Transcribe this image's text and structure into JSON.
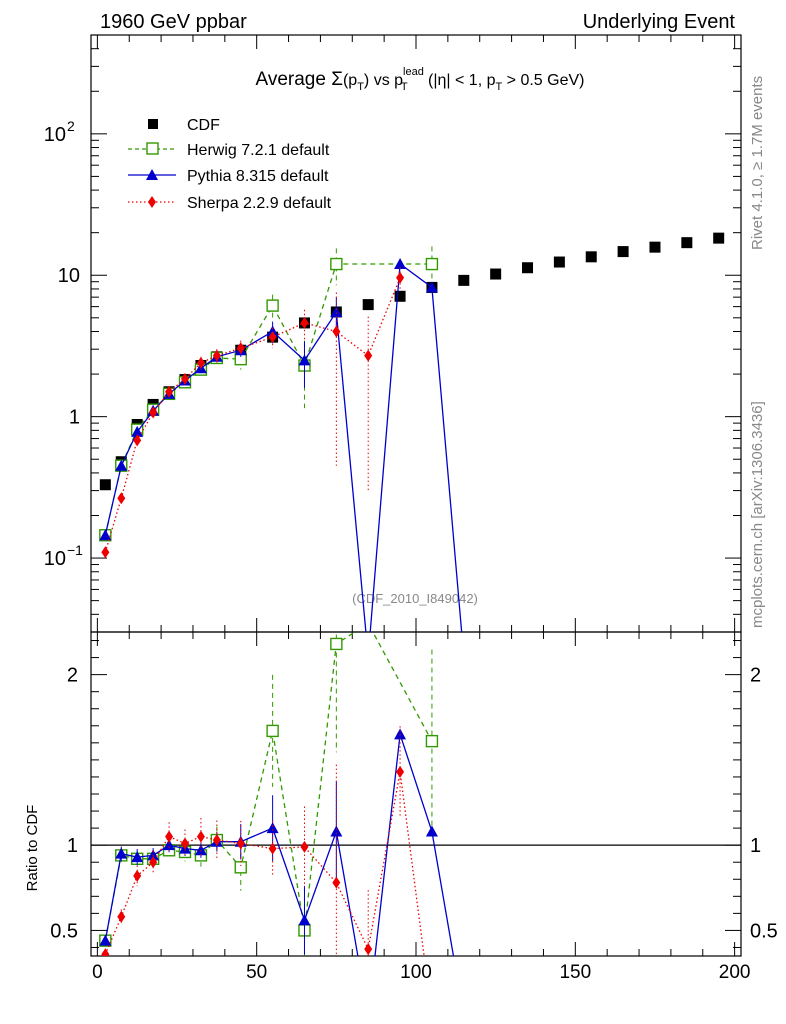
{
  "chart_data": {
    "type": "scatter",
    "header_left": "1960 GeV ppbar",
    "header_right": "Underlying Event",
    "title": {
      "prefix": "Average ",
      "sigma": "Σ",
      "paren_open": "(p",
      "t_sub": "T",
      "paren_close": ")",
      "vs": " vs p",
      "lead_sup": "lead",
      "t_sub2": "T",
      "cond1": " (|η| < 1, p",
      "t_sub3": "T",
      "cond2": " > 0.5 GeV)"
    },
    "watermark": "(CDF_2010_I849042)",
    "side_label_top": "Rivet 4.1.0, ≥ 1.7M events",
    "side_label_bottom": "mcplots.cern.ch [arXiv:1306.3436]",
    "ratio_ylabel": "Ratio to CDF",
    "xlim": [
      -2,
      202
    ],
    "ylim_main_log": [
      0.03,
      500
    ],
    "ylim_ratio": [
      0.35,
      2.25
    ],
    "x_ticks": [
      0,
      50,
      100,
      150,
      200
    ],
    "x_tick_labels": [
      "0",
      "50",
      "100",
      "150",
      "200"
    ],
    "y_main_labels": [
      {
        "value": 100,
        "base": "10",
        "exp": "2"
      },
      {
        "value": 10,
        "base": "10",
        "exp": ""
      },
      {
        "value": 1,
        "base": "1",
        "exp": ""
      },
      {
        "value": 0.1,
        "base": "10",
        "exp": "−1"
      }
    ],
    "y_ratio_ticks": [
      2,
      1,
      0.5
    ],
    "y_ratio_tick_labels": [
      "2",
      "1",
      "0.5"
    ],
    "legend": [
      {
        "name": "CDF",
        "marker": "square-filled",
        "line": "none",
        "color": "#000000"
      },
      {
        "name": "Herwig 7.2.1 default",
        "marker": "square-open",
        "line": "dashed",
        "color": "#339900"
      },
      {
        "name": "Pythia 8.315 default",
        "marker": "triangle",
        "line": "solid",
        "color": "#0000cc"
      },
      {
        "name": "Sherpa 2.2.9 default",
        "marker": "diamond",
        "line": "dotted",
        "color": "#ee0000"
      }
    ],
    "x": [
      2.5,
      7.5,
      12.5,
      17.5,
      22.5,
      27.5,
      32.5,
      37.5,
      45,
      55,
      65,
      75,
      85,
      95,
      105,
      115,
      125,
      135,
      145,
      155,
      165,
      175,
      185,
      195
    ],
    "series": [
      {
        "name": "CDF",
        "color": "#000000",
        "values": [
          0.33,
          0.48,
          0.88,
          1.22,
          1.5,
          1.83,
          2.3,
          2.65,
          2.95,
          3.65,
          4.6,
          5.5,
          6.2,
          7.1,
          8.2,
          9.2,
          10.2,
          11.3,
          12.4,
          13.5,
          14.7,
          15.8,
          17.0,
          18.3
        ],
        "errors": [
          0.01,
          0.01,
          0.02,
          0.02,
          0.02,
          0.03,
          0.03,
          0.04,
          0.05,
          0.08,
          0.12,
          0.15,
          0.2,
          0.25,
          0.3,
          0.3,
          0.35,
          0.4,
          0.4,
          0.45,
          0.5,
          0.5,
          0.55,
          0.6
        ]
      },
      {
        "name": "Herwig 7.2.1 default",
        "color": "#339900",
        "values": [
          0.145,
          0.45,
          0.81,
          1.12,
          1.45,
          1.75,
          2.15,
          2.6,
          2.55,
          6.1,
          2.3,
          12.0,
          null,
          null,
          12.0
        ],
        "errors": [
          0.01,
          0.02,
          0.04,
          0.05,
          0.07,
          0.1,
          0.15,
          0.2,
          0.4,
          1.2,
          1.15,
          3.5,
          null,
          null,
          4.0
        ],
        "ratio": [
          0.44,
          0.94,
          0.92,
          0.92,
          0.97,
          0.96,
          0.94,
          1.03,
          0.87,
          1.67,
          0.5,
          2.18,
          2.3,
          null,
          1.61
        ]
      },
      {
        "name": "Pythia 8.315 default",
        "color": "#0000cc",
        "values": [
          0.145,
          0.45,
          0.78,
          1.1,
          1.45,
          1.8,
          2.2,
          2.65,
          2.95,
          4.0,
          2.5,
          5.5,
          0.02,
          12.0,
          8.2,
          0.02
        ],
        "errors": [
          0.01,
          0.02,
          0.04,
          0.05,
          0.06,
          0.08,
          0.1,
          0.15,
          0.3,
          0.7,
          0.9,
          1.5,
          null,
          null,
          null,
          null
        ],
        "ratio": [
          0.44,
          0.95,
          0.93,
          0.94,
          1.0,
          0.98,
          0.97,
          1.02,
          1.02,
          1.1,
          0.56,
          1.08,
          0.0,
          1.65,
          1.08,
          0.0
        ]
      },
      {
        "name": "Sherpa 2.2.9 default",
        "color": "#ee0000",
        "values": [
          0.11,
          0.265,
          0.68,
          1.07,
          1.5,
          1.85,
          2.4,
          2.7,
          3.05,
          3.65,
          4.6,
          4.0,
          2.7,
          9.6
        ],
        "errors": [
          0.01,
          0.02,
          0.05,
          0.08,
          0.12,
          0.15,
          0.25,
          0.3,
          0.4,
          0.6,
          1.1,
          3.55,
          2.4,
          1.8
        ],
        "ratio": [
          0.36,
          0.58,
          0.82,
          0.9,
          1.05,
          1.01,
          1.05,
          1.03,
          1.01,
          0.98,
          0.99,
          0.78,
          0.39,
          1.43,
          0.0
        ]
      }
    ]
  }
}
